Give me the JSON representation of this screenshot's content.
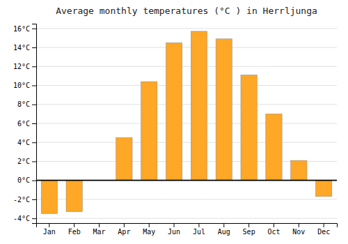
{
  "chart_data": {
    "type": "bar",
    "title": "Average monthly temperatures (°C ) in Herrljunga",
    "categories": [
      "Jan",
      "Feb",
      "Mar",
      "Apr",
      "May",
      "Jun",
      "Jul",
      "Aug",
      "Sep",
      "Oct",
      "Nov",
      "Dec"
    ],
    "values": [
      -3.5,
      -3.3,
      0.0,
      4.5,
      10.4,
      14.5,
      15.7,
      14.9,
      11.1,
      7.0,
      2.1,
      -1.7
    ],
    "color": "#FFA726",
    "ylim": [
      -4.5,
      16.5
    ],
    "yticks": [
      {
        "value": -4,
        "label": "-4°C"
      },
      {
        "value": -2,
        "label": "-2°C"
      },
      {
        "value": 0,
        "label": "0°C"
      },
      {
        "value": 2,
        "label": "2°C"
      },
      {
        "value": 4,
        "label": "4°C"
      },
      {
        "value": 6,
        "label": "6°C"
      },
      {
        "value": 8,
        "label": "8°C"
      },
      {
        "value": 10,
        "label": "10°C"
      },
      {
        "value": 12,
        "label": "12°C"
      },
      {
        "value": 14,
        "label": "14°C"
      },
      {
        "value": 16,
        "label": "16°C"
      }
    ],
    "grid": true
  }
}
